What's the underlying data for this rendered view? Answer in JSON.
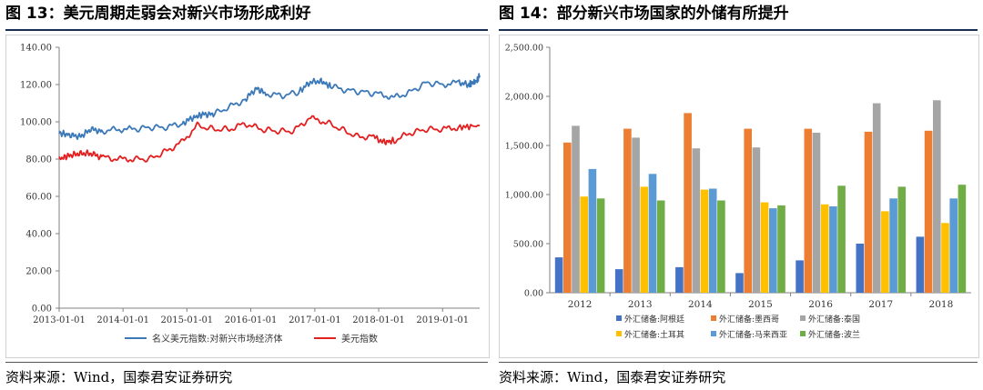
{
  "left": {
    "title": "图 13：美元周期走弱会对新兴市场形成利好",
    "source": "资料来源：Wind，国泰君安证券研究",
    "chart_data": {
      "type": "line",
      "title": "图 13：美元周期走弱会对新兴市场形成利好",
      "xlabel": "",
      "ylabel": "",
      "x_ticks": [
        "2013-01-01",
        "2014-01-01",
        "2015-01-01",
        "2016-01-01",
        "2017-01-01",
        "2018-01-01",
        "2019-01-01"
      ],
      "y_ticks": [
        "0.00",
        "20.00",
        "40.00",
        "60.00",
        "80.00",
        "100.00",
        "120.00",
        "140.00"
      ],
      "ylim": [
        0,
        140
      ],
      "xlim": [
        "2013-01-01",
        "2019-08-01"
      ],
      "grid": false,
      "legend_position": "bottom",
      "series": [
        {
          "name": "名义美元指数:对新兴市场经济体",
          "color": "#3b78b8",
          "points": [
            [
              "2013-01-01",
              94
            ],
            [
              "2013-03-01",
              93
            ],
            [
              "2013-05-01",
              92
            ],
            [
              "2013-07-01",
              96
            ],
            [
              "2013-09-01",
              95
            ],
            [
              "2013-12-01",
              96
            ],
            [
              "2014-03-01",
              96
            ],
            [
              "2014-06-01",
              97
            ],
            [
              "2014-09-01",
              97
            ],
            [
              "2014-12-01",
              99
            ],
            [
              "2015-02-01",
              102
            ],
            [
              "2015-04-01",
              104
            ],
            [
              "2015-06-01",
              104
            ],
            [
              "2015-09-01",
              108
            ],
            [
              "2015-12-01",
              112
            ],
            [
              "2016-02-01",
              118
            ],
            [
              "2016-04-01",
              115
            ],
            [
              "2016-07-01",
              114
            ],
            [
              "2016-10-01",
              116
            ],
            [
              "2016-12-01",
              121
            ],
            [
              "2017-02-01",
              122
            ],
            [
              "2017-04-01",
              119
            ],
            [
              "2017-07-01",
              117
            ],
            [
              "2017-10-01",
              116
            ],
            [
              "2018-01-01",
              115
            ],
            [
              "2018-04-01",
              113
            ],
            [
              "2018-07-01",
              116
            ],
            [
              "2018-10-01",
              121
            ],
            [
              "2019-01-01",
              120
            ],
            [
              "2019-04-01",
              121
            ],
            [
              "2019-06-01",
              120
            ],
            [
              "2019-07-15",
              122
            ],
            [
              "2019-08-01",
              125
            ]
          ]
        },
        {
          "name": "美元指数",
          "color": "#e41f1f",
          "points": [
            [
              "2013-01-01",
              80
            ],
            [
              "2013-03-01",
              82
            ],
            [
              "2013-05-01",
              83
            ],
            [
              "2013-07-01",
              83
            ],
            [
              "2013-09-01",
              81
            ],
            [
              "2013-12-01",
              80
            ],
            [
              "2014-03-01",
              80
            ],
            [
              "2014-06-01",
              80
            ],
            [
              "2014-09-01",
              84
            ],
            [
              "2014-12-01",
              89
            ],
            [
              "2015-03-01",
              98
            ],
            [
              "2015-06-01",
              96
            ],
            [
              "2015-09-01",
              96
            ],
            [
              "2015-12-01",
              99
            ],
            [
              "2016-03-01",
              96
            ],
            [
              "2016-06-01",
              95
            ],
            [
              "2016-09-01",
              95
            ],
            [
              "2016-12-01",
              102
            ],
            [
              "2017-03-01",
              100
            ],
            [
              "2017-06-01",
              96
            ],
            [
              "2017-09-01",
              92
            ],
            [
              "2017-12-01",
              92
            ],
            [
              "2018-02-01",
              89
            ],
            [
              "2018-04-01",
              90
            ],
            [
              "2018-07-01",
              94
            ],
            [
              "2018-10-01",
              96
            ],
            [
              "2019-01-01",
              96
            ],
            [
              "2019-04-01",
              97
            ],
            [
              "2019-08-01",
              98
            ]
          ]
        }
      ]
    }
  },
  "right": {
    "title": "图 14：部分新兴市场国家的外储有所提升",
    "source": "资料来源：Wind，国泰君安证券研究",
    "chart_data": {
      "type": "bar",
      "title": "图 14：部分新兴市场国家的外储有所提升",
      "xlabel": "",
      "ylabel": "",
      "categories": [
        "2012",
        "2013",
        "2014",
        "2015",
        "2016",
        "2017",
        "2018"
      ],
      "y_ticks": [
        "0.00",
        "500.00",
        "1,000.00",
        "1,500.00",
        "2,000.00",
        "2,500.00"
      ],
      "ylim": [
        0,
        2500
      ],
      "grid": false,
      "legend_position": "bottom",
      "series": [
        {
          "name": "外汇储备:阿根廷",
          "color": "#4472c4",
          "values": [
            360,
            240,
            260,
            200,
            330,
            500,
            570
          ]
        },
        {
          "name": "外汇储备:墨西哥",
          "color": "#ed7d31",
          "values": [
            1530,
            1670,
            1830,
            1670,
            1670,
            1640,
            1650
          ]
        },
        {
          "name": "外汇储备:泰国",
          "color": "#a5a5a5",
          "values": [
            1700,
            1580,
            1470,
            1480,
            1630,
            1930,
            1960
          ]
        },
        {
          "name": "外汇储备:土耳其",
          "color": "#ffc000",
          "values": [
            980,
            1080,
            1050,
            920,
            900,
            830,
            710
          ]
        },
        {
          "name": "外汇储备:马来西亚",
          "color": "#5b9bd5",
          "values": [
            1260,
            1210,
            1060,
            860,
            880,
            960,
            960
          ]
        },
        {
          "name": "外汇储备:波兰",
          "color": "#70ad47",
          "values": [
            960,
            940,
            940,
            890,
            1090,
            1080,
            1100
          ]
        }
      ]
    }
  }
}
